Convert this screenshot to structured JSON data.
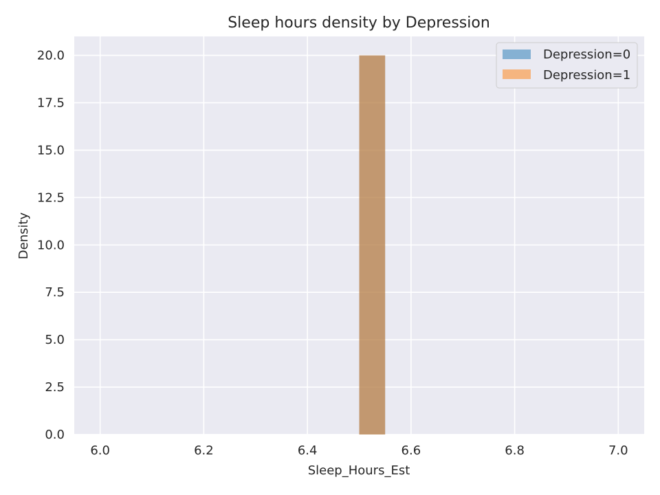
{
  "chart_data": {
    "type": "bar",
    "title": "Sleep hours density by Depression",
    "xlabel": "Sleep_Hours_Est",
    "ylabel": "Density",
    "xlim": [
      5.95,
      7.05
    ],
    "ylim": [
      0,
      21
    ],
    "x_ticks": [
      "6.0",
      "6.2",
      "6.4",
      "6.6",
      "6.8",
      "7.0"
    ],
    "y_ticks": [
      "0.0",
      "2.5",
      "5.0",
      "7.5",
      "10.0",
      "12.5",
      "15.0",
      "17.5",
      "20.0"
    ],
    "grid": true,
    "legend_position": "top-right",
    "series": [
      {
        "name": "Depression=0",
        "color": "#1f77b4",
        "opacity": 0.5,
        "bins": [
          {
            "x0": 6.5,
            "x1": 6.55,
            "value": 20.0
          }
        ]
      },
      {
        "name": "Depression=1",
        "color": "#ff7f0e",
        "opacity": 0.5,
        "bins": [
          {
            "x0": 6.5,
            "x1": 6.55,
            "value": 20.0
          }
        ]
      }
    ],
    "colors": {
      "background": "#eaeaf2",
      "grid": "#ffffff",
      "text": "#262626"
    }
  }
}
